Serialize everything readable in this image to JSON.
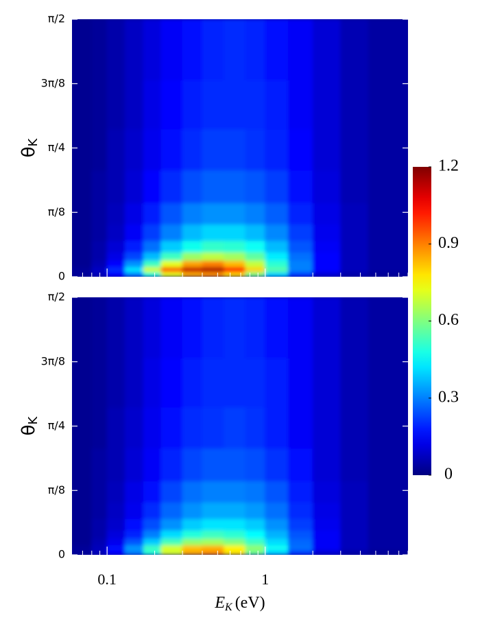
{
  "chart_data": {
    "type": "heatmap",
    "ylabel": {
      "symbol": "θ",
      "subscript": "K"
    },
    "xlabel": {
      "symbol": "E",
      "subscript": "K",
      "unit": "(eV)"
    },
    "log_x": true,
    "xlim": [
      0.06,
      8
    ],
    "xticks": [
      0.1,
      1
    ],
    "xminor": [
      0.07,
      0.08,
      0.09,
      0.2,
      0.3,
      0.4,
      0.5,
      0.6,
      0.7,
      0.8,
      0.9,
      2,
      3,
      4,
      5,
      6,
      7,
      8
    ],
    "ylim": [
      0,
      1.5708
    ],
    "yticks": [
      0,
      {
        "value": 0.3927,
        "label": "π/8"
      },
      {
        "value": 0.7854,
        "label": "π/4"
      },
      {
        "value": 1.1781,
        "label": "3π/8"
      },
      {
        "value": 1.5708,
        "label": "π/2"
      }
    ],
    "x_edges": [
      0.06,
      0.08,
      0.1,
      0.13,
      0.17,
      0.22,
      0.3,
      0.4,
      0.55,
      0.75,
      1,
      1.4,
      2,
      3,
      4.5,
      8
    ],
    "y_edges": [
      0,
      0.03,
      0.06,
      0.1,
      0.15,
      0.22,
      0.32,
      0.45,
      0.65,
      0.9,
      1.2,
      1.5708
    ],
    "colorbar": {
      "colormap": "jet",
      "lim": [
        0,
        1.2
      ],
      "ticks": [
        0,
        0.3,
        0.6,
        0.9,
        1.2
      ]
    },
    "panels": [
      {
        "z": [
          [
            0.03,
            0.07,
            0.15,
            0.3,
            0.5,
            0.72,
            0.85,
            0.88,
            0.8,
            0.6,
            0.4,
            0.22,
            0.1,
            0.05,
            0.03
          ],
          [
            0.03,
            0.08,
            0.2,
            0.42,
            0.7,
            0.95,
            1.12,
            1.15,
            1.05,
            0.8,
            0.55,
            0.3,
            0.15,
            0.07,
            0.04
          ],
          [
            0.02,
            0.06,
            0.15,
            0.32,
            0.52,
            0.72,
            0.86,
            0.9,
            0.83,
            0.68,
            0.5,
            0.3,
            0.15,
            0.07,
            0.04
          ],
          [
            0.02,
            0.05,
            0.12,
            0.23,
            0.37,
            0.52,
            0.63,
            0.67,
            0.64,
            0.56,
            0.43,
            0.28,
            0.15,
            0.07,
            0.04
          ],
          [
            0.02,
            0.05,
            0.1,
            0.18,
            0.28,
            0.39,
            0.47,
            0.51,
            0.5,
            0.46,
            0.37,
            0.25,
            0.14,
            0.07,
            0.04
          ],
          [
            0.02,
            0.04,
            0.08,
            0.14,
            0.22,
            0.3,
            0.37,
            0.4,
            0.4,
            0.37,
            0.31,
            0.22,
            0.13,
            0.07,
            0.04
          ],
          [
            0.02,
            0.04,
            0.07,
            0.12,
            0.18,
            0.25,
            0.3,
            0.32,
            0.32,
            0.3,
            0.26,
            0.19,
            0.12,
            0.07,
            0.04
          ],
          [
            0.02,
            0.04,
            0.06,
            0.1,
            0.15,
            0.2,
            0.24,
            0.26,
            0.26,
            0.25,
            0.22,
            0.17,
            0.11,
            0.06,
            0.04
          ],
          [
            0.02,
            0.03,
            0.06,
            0.09,
            0.13,
            0.17,
            0.2,
            0.22,
            0.22,
            0.21,
            0.19,
            0.15,
            0.1,
            0.06,
            0.04
          ],
          [
            0.02,
            0.03,
            0.05,
            0.08,
            0.12,
            0.15,
            0.18,
            0.2,
            0.2,
            0.2,
            0.18,
            0.14,
            0.1,
            0.06,
            0.04
          ],
          [
            0.02,
            0.03,
            0.05,
            0.08,
            0.11,
            0.14,
            0.17,
            0.19,
            0.2,
            0.19,
            0.17,
            0.14,
            0.1,
            0.06,
            0.04
          ]
        ]
      },
      {
        "z": [
          [
            0.03,
            0.07,
            0.15,
            0.3,
            0.5,
            0.7,
            0.85,
            0.88,
            0.78,
            0.58,
            0.4,
            0.22,
            0.1,
            0.05,
            0.03
          ],
          [
            0.03,
            0.07,
            0.17,
            0.33,
            0.52,
            0.7,
            0.82,
            0.84,
            0.76,
            0.62,
            0.46,
            0.28,
            0.14,
            0.07,
            0.04
          ],
          [
            0.02,
            0.06,
            0.13,
            0.25,
            0.39,
            0.53,
            0.62,
            0.64,
            0.6,
            0.52,
            0.41,
            0.27,
            0.14,
            0.07,
            0.04
          ],
          [
            0.02,
            0.05,
            0.11,
            0.19,
            0.3,
            0.41,
            0.49,
            0.52,
            0.5,
            0.45,
            0.36,
            0.25,
            0.14,
            0.07,
            0.04
          ],
          [
            0.02,
            0.05,
            0.09,
            0.16,
            0.24,
            0.32,
            0.39,
            0.42,
            0.42,
            0.39,
            0.32,
            0.22,
            0.13,
            0.07,
            0.04
          ],
          [
            0.02,
            0.04,
            0.08,
            0.13,
            0.2,
            0.27,
            0.32,
            0.35,
            0.35,
            0.33,
            0.28,
            0.2,
            0.12,
            0.07,
            0.04
          ],
          [
            0.02,
            0.04,
            0.07,
            0.12,
            0.17,
            0.23,
            0.28,
            0.3,
            0.3,
            0.29,
            0.25,
            0.18,
            0.11,
            0.07,
            0.04
          ],
          [
            0.02,
            0.04,
            0.06,
            0.1,
            0.14,
            0.19,
            0.23,
            0.25,
            0.25,
            0.24,
            0.21,
            0.16,
            0.1,
            0.06,
            0.04
          ],
          [
            0.02,
            0.03,
            0.06,
            0.09,
            0.13,
            0.17,
            0.2,
            0.21,
            0.22,
            0.21,
            0.18,
            0.14,
            0.1,
            0.06,
            0.04
          ],
          [
            0.02,
            0.03,
            0.05,
            0.08,
            0.12,
            0.15,
            0.18,
            0.2,
            0.2,
            0.2,
            0.18,
            0.14,
            0.1,
            0.06,
            0.04
          ],
          [
            0.02,
            0.03,
            0.05,
            0.08,
            0.11,
            0.14,
            0.17,
            0.19,
            0.2,
            0.19,
            0.17,
            0.14,
            0.1,
            0.06,
            0.04
          ]
        ]
      }
    ]
  }
}
